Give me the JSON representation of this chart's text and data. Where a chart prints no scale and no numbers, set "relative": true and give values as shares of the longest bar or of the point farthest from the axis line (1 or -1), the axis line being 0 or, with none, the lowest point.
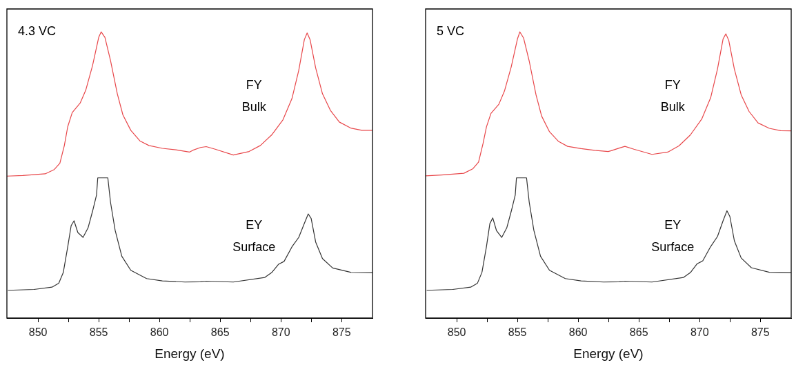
{
  "chart_data": [
    {
      "type": "line",
      "title": "4.3 VC",
      "xlabel": "Energy (eV)",
      "relative": true,
      "xlim": [
        847.44,
        877.54
      ],
      "xticks": [
        850,
        {
          "value": 852.5,
          "label": null
        },
        855,
        {
          "value": 857.5,
          "label": null
        },
        860,
        {
          "value": 862.5,
          "label": null
        },
        865,
        {
          "value": 867.5,
          "label": null
        },
        870,
        {
          "value": 872.5,
          "label": null
        },
        875
      ],
      "grid": false,
      "legend": false,
      "marker": "none",
      "line_style": "solid",
      "series": [
        {
          "name": "FY Bulk",
          "color": "#e8474a",
          "x": [
            847.44,
            848.74,
            850.59,
            851.34,
            851.8,
            852.17,
            852.45,
            852.82,
            853.47,
            853.93,
            854.49,
            855.0,
            855.2,
            855.51,
            855.97,
            856.53,
            856.99,
            857.64,
            858.39,
            859.13,
            860.24,
            861.35,
            862.47,
            862.73,
            863.38,
            863.85,
            864.59,
            866.08,
            867.38,
            868.31,
            869.24,
            870.17,
            870.91,
            871.47,
            871.93,
            872.16,
            872.4,
            872.86,
            873.42,
            874.07,
            874.81,
            875.74,
            876.67,
            877.54
          ],
          "values": [
            0.496,
            0.498,
            0.504,
            0.519,
            0.541,
            0.603,
            0.669,
            0.718,
            0.751,
            0.796,
            0.882,
            0.981,
            1.0,
            0.981,
            0.9,
            0.784,
            0.71,
            0.656,
            0.619,
            0.603,
            0.593,
            0.588,
            0.58,
            0.586,
            0.596,
            0.599,
            0.59,
            0.57,
            0.582,
            0.603,
            0.64,
            0.693,
            0.767,
            0.866,
            0.973,
            0.996,
            0.973,
            0.874,
            0.784,
            0.726,
            0.685,
            0.664,
            0.656,
            0.656
          ]
        },
        {
          "name": "EY Surface",
          "color": "#333333",
          "x": [
            847.53,
            849.67,
            851.15,
            851.71,
            852.08,
            852.45,
            852.73,
            852.97,
            853.28,
            853.71,
            854.12,
            854.49,
            854.82,
            854.92,
            855.75,
            855.97,
            856.35,
            856.9,
            857.64,
            858.94,
            860.24,
            862.1,
            863.38,
            863.85,
            866.08,
            868.68,
            869.24,
            869.8,
            870.26,
            870.91,
            871.47,
            871.93,
            872.25,
            872.49,
            872.86,
            873.42,
            874.26,
            875.74,
            877.54
          ],
          "values": [
            0.097,
            0.1,
            0.108,
            0.122,
            0.159,
            0.249,
            0.323,
            0.34,
            0.299,
            0.282,
            0.315,
            0.373,
            0.43,
            0.49,
            0.49,
            0.405,
            0.307,
            0.216,
            0.167,
            0.138,
            0.13,
            0.126,
            0.127,
            0.129,
            0.126,
            0.142,
            0.159,
            0.188,
            0.198,
            0.249,
            0.282,
            0.331,
            0.364,
            0.348,
            0.266,
            0.208,
            0.175,
            0.16,
            0.159
          ]
        }
      ]
    },
    {
      "type": "line",
      "title": "5 VC",
      "xlabel": "Energy (eV)",
      "relative": true,
      "xlim": [
        847.44,
        877.54
      ],
      "xticks": [
        850,
        {
          "value": 852.5,
          "label": null
        },
        855,
        {
          "value": 857.5,
          "label": null
        },
        860,
        {
          "value": 862.5,
          "label": null
        },
        865,
        {
          "value": 867.5,
          "label": null
        },
        870,
        {
          "value": 872.5,
          "label": null
        },
        875
      ],
      "grid": false,
      "legend": false,
      "marker": "none",
      "line_style": "solid",
      "series": [
        {
          "name": "FY Bulk",
          "color": "#e8474a",
          "x": [
            847.44,
            848.74,
            850.59,
            851.34,
            851.8,
            852.17,
            852.45,
            852.82,
            853.47,
            853.93,
            854.49,
            855.0,
            855.2,
            855.51,
            855.97,
            856.53,
            856.99,
            857.64,
            858.39,
            859.13,
            860.24,
            861.35,
            862.47,
            862.73,
            863.38,
            863.85,
            864.59,
            866.08,
            867.38,
            868.31,
            869.24,
            870.17,
            870.91,
            871.47,
            871.93,
            872.16,
            872.4,
            872.86,
            873.42,
            874.07,
            874.81,
            875.74,
            876.67,
            877.54
          ],
          "values": [
            0.497,
            0.5,
            0.506,
            0.522,
            0.545,
            0.61,
            0.668,
            0.715,
            0.747,
            0.793,
            0.878,
            0.975,
            1.0,
            0.978,
            0.898,
            0.78,
            0.706,
            0.651,
            0.617,
            0.6,
            0.592,
            0.586,
            0.582,
            0.585,
            0.594,
            0.6,
            0.59,
            0.572,
            0.58,
            0.602,
            0.64,
            0.695,
            0.77,
            0.87,
            0.975,
            0.993,
            0.97,
            0.87,
            0.78,
            0.722,
            0.682,
            0.663,
            0.655,
            0.654
          ]
        },
        {
          "name": "EY Surface",
          "color": "#333333",
          "x": [
            847.53,
            849.67,
            851.15,
            851.71,
            852.08,
            852.45,
            852.73,
            852.97,
            853.28,
            853.71,
            854.12,
            854.49,
            854.82,
            854.92,
            855.75,
            855.97,
            856.35,
            856.9,
            857.64,
            858.94,
            860.24,
            862.1,
            863.38,
            863.85,
            866.08,
            868.68,
            869.24,
            869.8,
            870.26,
            870.91,
            871.47,
            871.93,
            872.25,
            872.49,
            872.86,
            873.42,
            874.26,
            875.74,
            877.54
          ],
          "values": [
            0.097,
            0.1,
            0.108,
            0.122,
            0.16,
            0.25,
            0.33,
            0.35,
            0.305,
            0.282,
            0.315,
            0.373,
            0.43,
            0.49,
            0.49,
            0.405,
            0.307,
            0.216,
            0.167,
            0.138,
            0.13,
            0.126,
            0.127,
            0.129,
            0.126,
            0.142,
            0.159,
            0.19,
            0.2,
            0.25,
            0.285,
            0.34,
            0.375,
            0.355,
            0.27,
            0.21,
            0.176,
            0.16,
            0.159
          ]
        }
      ]
    }
  ]
}
